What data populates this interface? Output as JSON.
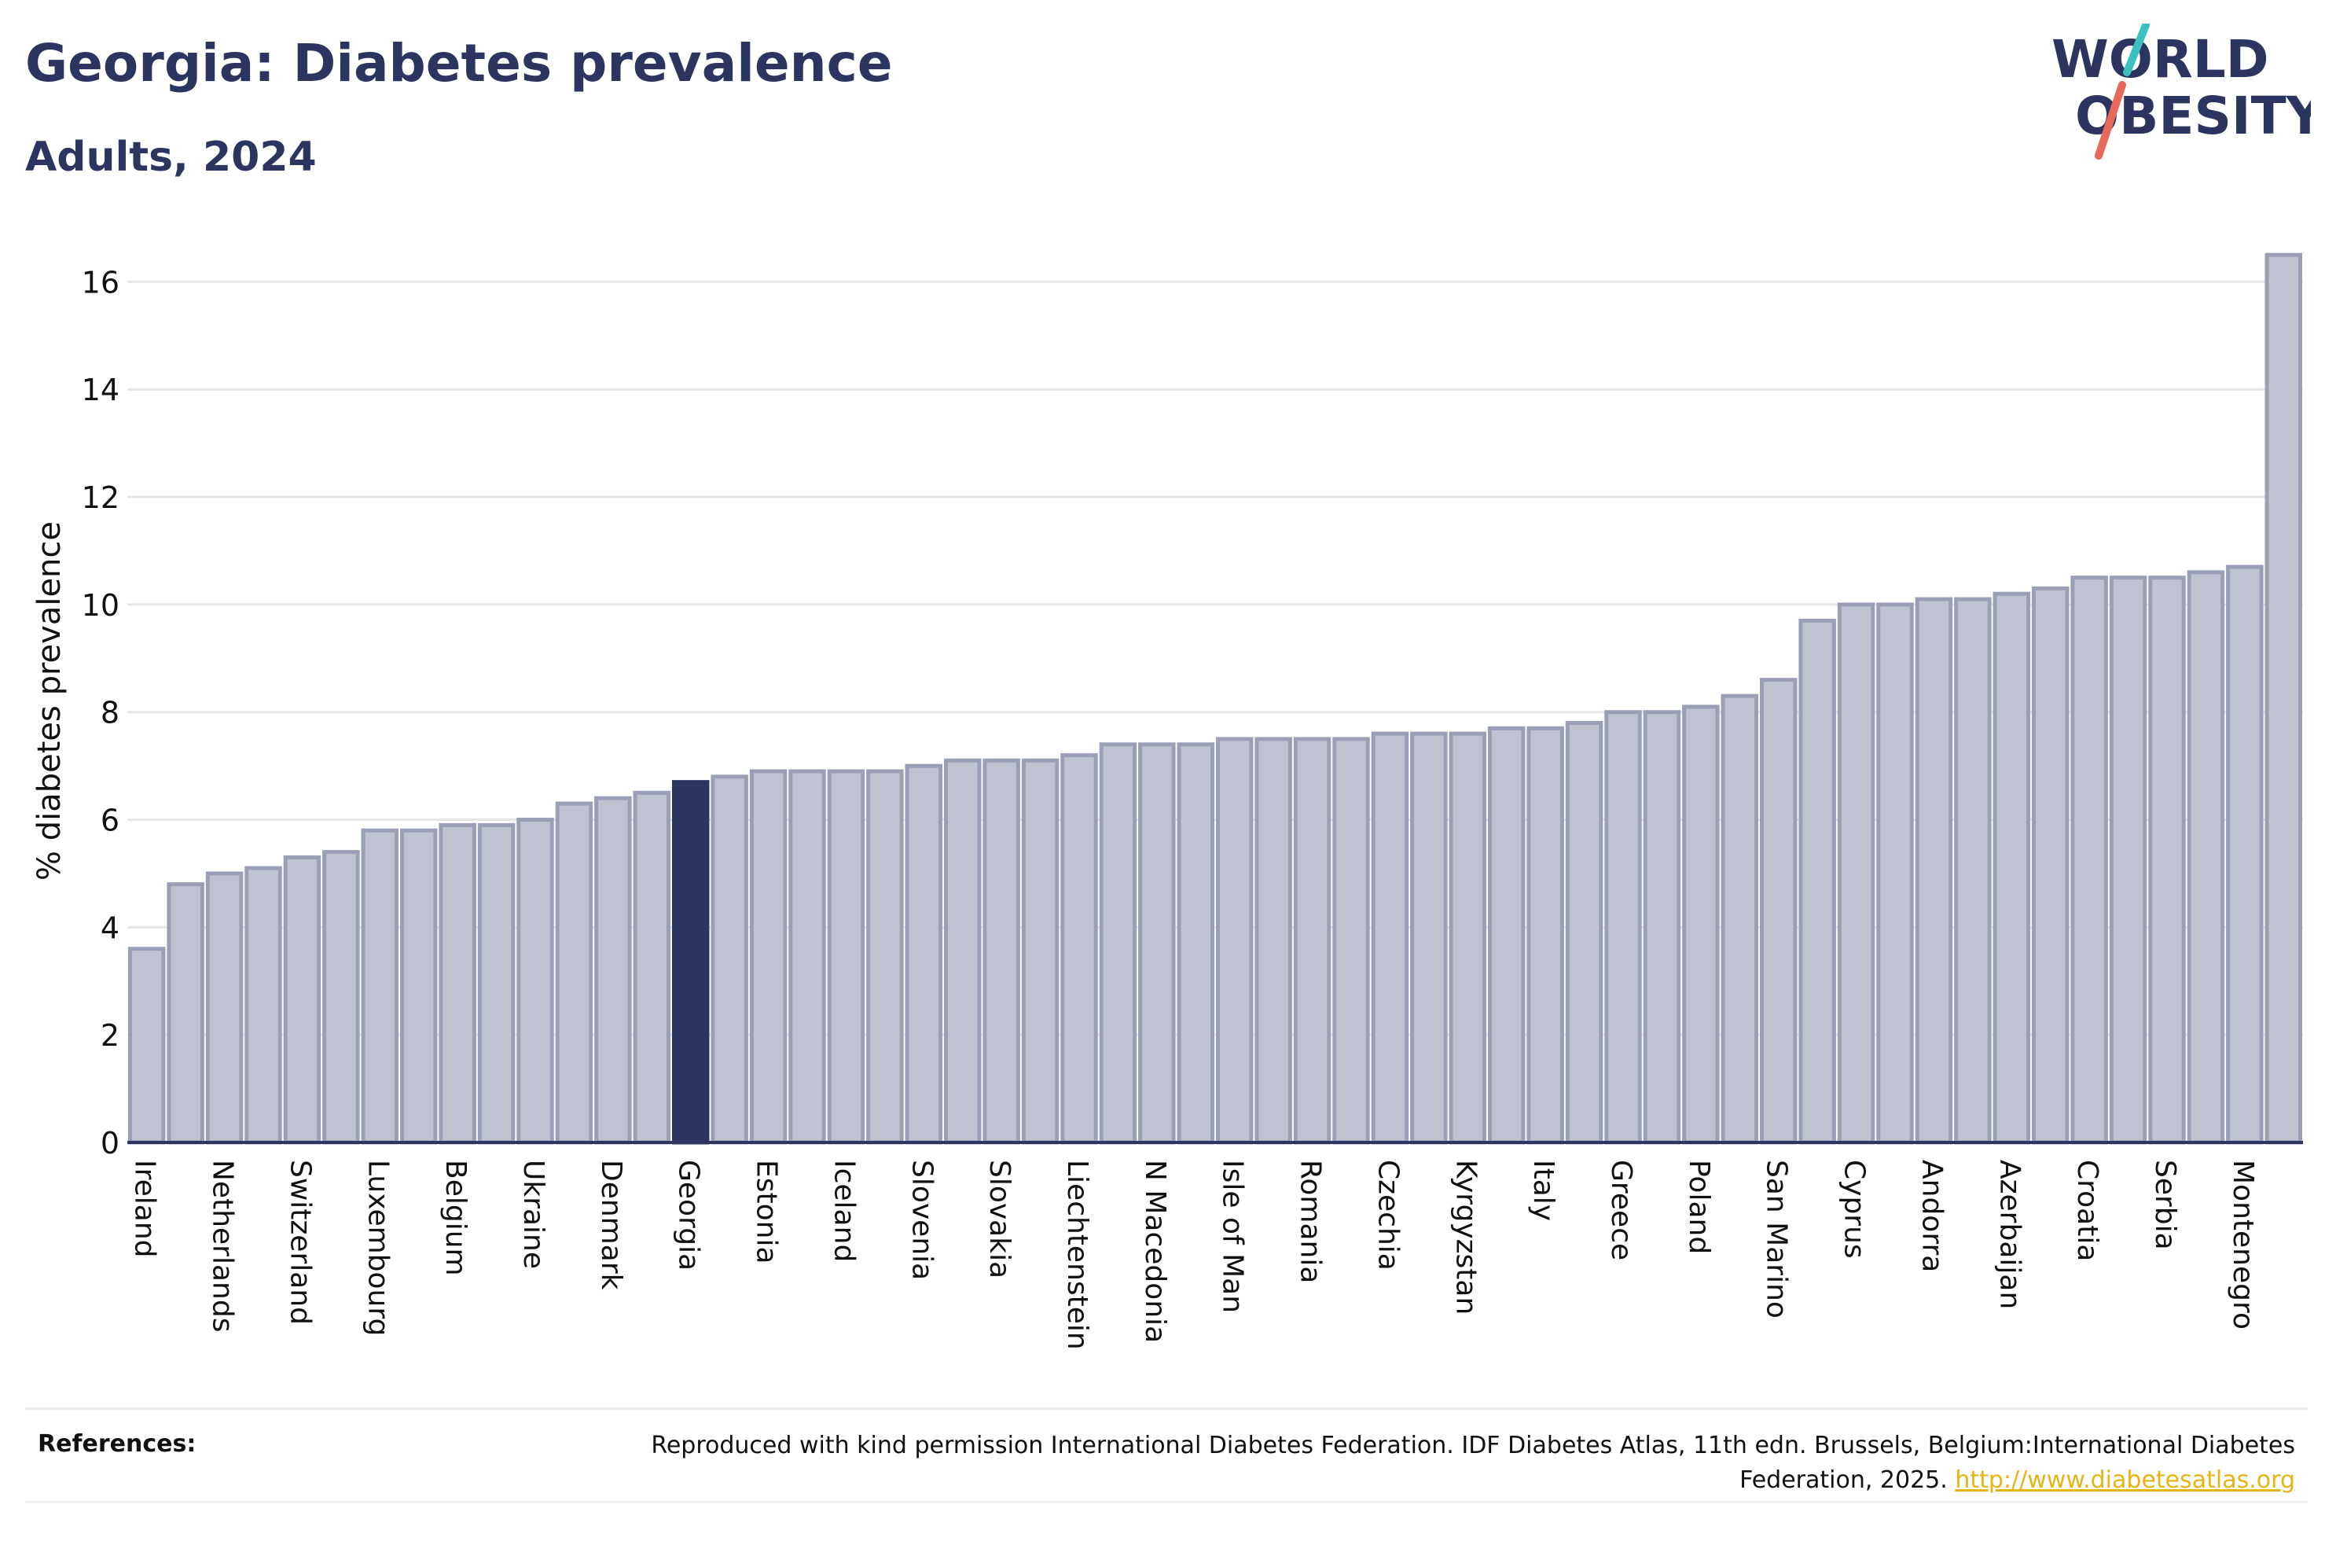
{
  "header": {
    "title": "Georgia: Diabetes prevalence",
    "subtitle": "Adults, 2024"
  },
  "logo": {
    "line1": "WORLD",
    "line2": "OBESITY"
  },
  "references": {
    "label": "References:",
    "text": "Reproduced with kind permission International Diabetes Federation. IDF Diabetes Atlas, 11th edn. Brussels, Belgium:International Diabetes Federation, 2025.",
    "link": "http://www.diabetesatlas.org"
  },
  "colors": {
    "title": "#2b3560",
    "bar": "#bfc2d0",
    "bar_outline": "#9a9fb7",
    "highlight": "#2b3560",
    "link": "#e7b416",
    "logo_slash_teal": "#3cbfc0",
    "logo_slash_red": "#e8685a"
  },
  "chart_data": {
    "type": "bar",
    "ylabel": "% diabetes prevalence",
    "xlabel": "",
    "ylim": [
      0,
      17
    ],
    "yticks": [
      0,
      2,
      4,
      6,
      8,
      10,
      12,
      14,
      16
    ],
    "grid": true,
    "highlight": "Georgia",
    "categories": [
      "Ireland",
      "",
      "Netherlands",
      "",
      "Switzerland",
      "",
      "Luxembourg",
      "",
      "Belgium",
      "",
      "Ukraine",
      "",
      "Denmark",
      "",
      "Georgia",
      "",
      "Estonia",
      "",
      "Iceland",
      "",
      "Slovenia",
      "",
      "Slovakia",
      "",
      "Liechtenstein",
      "",
      "N Macedonia",
      "",
      "Isle of Man",
      "",
      "Romania",
      "",
      "Czechia",
      "",
      "Kyrgyzstan",
      "",
      "Italy",
      "",
      "Greece",
      "",
      "Poland",
      "",
      "San Marino",
      "",
      "Cyprus",
      "",
      "Andorra",
      "",
      "Azerbaijan",
      "",
      "Croatia",
      "",
      "Serbia",
      "",
      "Montenegro",
      ""
    ],
    "values": [
      3.6,
      4.8,
      5.0,
      5.1,
      5.3,
      5.4,
      5.8,
      5.8,
      5.9,
      5.9,
      6.0,
      6.3,
      6.4,
      6.5,
      6.7,
      6.8,
      6.9,
      6.9,
      6.9,
      6.9,
      7.0,
      7.1,
      7.1,
      7.1,
      7.2,
      7.4,
      7.4,
      7.4,
      7.5,
      7.5,
      7.5,
      7.5,
      7.6,
      7.6,
      7.6,
      7.7,
      7.7,
      7.8,
      8.0,
      8.0,
      8.1,
      8.3,
      8.6,
      9.7,
      10.0,
      10.0,
      10.1,
      10.1,
      10.2,
      10.3,
      10.5,
      10.5,
      10.5,
      10.6,
      10.7,
      16.5
    ]
  }
}
